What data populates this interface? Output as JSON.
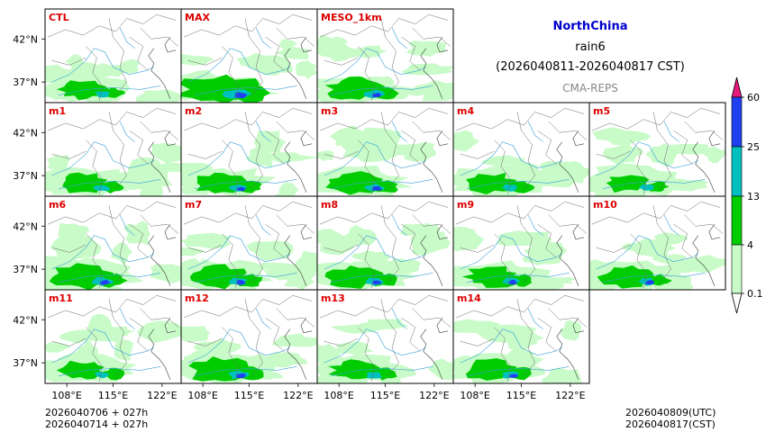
{
  "header": {
    "region": "NorthChina",
    "variable": "rain6",
    "period": "(2026040811-2026040817 CST)",
    "source": "CMA-REPS"
  },
  "colors": {
    "region_title": "#0000cc",
    "panel_label": "#dd0000",
    "source": "#888888",
    "river": "#3aa0d8",
    "border": "#6a6a6a",
    "coast": "#3a3a3a"
  },
  "axis": {
    "lat_ticks": [
      "42°N",
      "37°N"
    ],
    "lon_ticks": [
      "108°E",
      "115°E",
      "122°E"
    ]
  },
  "colorbar": {
    "levels": [
      "0.1",
      "4",
      "13",
      "25",
      "60"
    ],
    "colors": [
      "#ffffff",
      "#c8fbc8",
      "#00cc00",
      "#00bfbf",
      "#1f3ff0",
      "#e6197d"
    ]
  },
  "panels": [
    {
      "label": "CTL",
      "intensity": 0.55
    },
    {
      "label": "MAX",
      "intensity": 1.0
    },
    {
      "label": "MESO_1km",
      "intensity": 0.7
    },
    {
      "label": "m1",
      "intensity": 0.6
    },
    {
      "label": "m2",
      "intensity": 0.65
    },
    {
      "label": "m3",
      "intensity": 0.7
    },
    {
      "label": "m4",
      "intensity": 0.6
    },
    {
      "label": "m5",
      "intensity": 0.55
    },
    {
      "label": "m6",
      "intensity": 0.75
    },
    {
      "label": "m7",
      "intensity": 0.7
    },
    {
      "label": "m8",
      "intensity": 0.7
    },
    {
      "label": "m9",
      "intensity": 0.65
    },
    {
      "label": "m10",
      "intensity": 0.65
    },
    {
      "label": "m11",
      "intensity": 0.55
    },
    {
      "label": "m12",
      "intensity": 0.75
    },
    {
      "label": "m13",
      "intensity": 0.6
    },
    {
      "label": "m14",
      "intensity": 0.65
    }
  ],
  "footer": {
    "left_line1": "2026040706  +  027h",
    "left_line2": "2026040714  +  027h",
    "right_line1": "2026040809(UTC)",
    "right_line2": "2026040817(CST)"
  }
}
